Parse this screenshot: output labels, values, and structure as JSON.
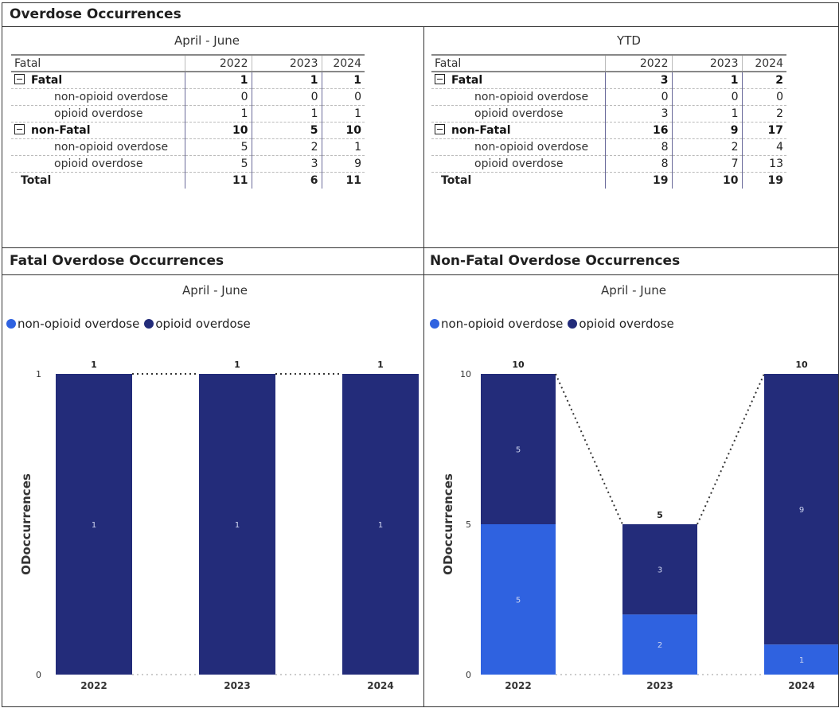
{
  "title": "Overdose Occurrences",
  "tables": [
    {
      "subtitle": "April - June",
      "header": {
        "label": "Fatal",
        "years": [
          "2022",
          "2023",
          "2024"
        ]
      },
      "rows": [
        {
          "label": "Fatal",
          "values": [
            "1",
            "1",
            "1"
          ]
        },
        {
          "label": "non-opioid overdose",
          "values": [
            "0",
            "0",
            "0"
          ]
        },
        {
          "label": "opioid overdose",
          "values": [
            "1",
            "1",
            "1"
          ]
        },
        {
          "label": "non-Fatal",
          "values": [
            "10",
            "5",
            "10"
          ]
        },
        {
          "label": "non-opioid overdose",
          "values": [
            "5",
            "2",
            "1"
          ]
        },
        {
          "label": "opioid overdose",
          "values": [
            "5",
            "3",
            "9"
          ]
        },
        {
          "label": "Total",
          "values": [
            "11",
            "6",
            "11"
          ]
        }
      ]
    },
    {
      "subtitle": "YTD",
      "header": {
        "label": "Fatal",
        "years": [
          "2022",
          "2023",
          "2024"
        ]
      },
      "rows": [
        {
          "label": "Fatal",
          "values": [
            "3",
            "1",
            "2"
          ]
        },
        {
          "label": "non-opioid overdose",
          "values": [
            "0",
            "0",
            "0"
          ]
        },
        {
          "label": "opioid overdose",
          "values": [
            "3",
            "1",
            "2"
          ]
        },
        {
          "label": "non-Fatal",
          "values": [
            "16",
            "9",
            "17"
          ]
        },
        {
          "label": "non-opioid overdose",
          "values": [
            "8",
            "2",
            "4"
          ]
        },
        {
          "label": "opioid overdose",
          "values": [
            "8",
            "7",
            "13"
          ]
        },
        {
          "label": "Total",
          "values": [
            "19",
            "10",
            "19"
          ]
        }
      ]
    }
  ],
  "charts": [
    {
      "title": "Fatal Overdose Occurrences",
      "subtitle": "April - June",
      "legend": [
        "non-opioid overdose",
        "opioid overdose"
      ]
    },
    {
      "title": "Non-Fatal Overdose Occurrences",
      "subtitle": "April - June",
      "legend": [
        "non-opioid overdose",
        "opioid overdose"
      ]
    }
  ],
  "colors": {
    "non_opioid": "#2f62e0",
    "opioid": "#232c7a"
  },
  "chart_data": [
    {
      "type": "bar",
      "stacked": true,
      "title": "Fatal Overdose Occurrences",
      "subtitle": "April - June",
      "categories": [
        "2022",
        "2023",
        "2024"
      ],
      "series": [
        {
          "name": "non-opioid overdose",
          "values": [
            0,
            0,
            0
          ]
        },
        {
          "name": "opioid overdose",
          "values": [
            1,
            1,
            1
          ]
        }
      ],
      "totals": [
        1,
        1,
        1
      ],
      "ylabel": "ODoccurrences",
      "ylim": [
        0,
        1
      ],
      "yticks": [
        0,
        1
      ],
      "legend": "top-left"
    },
    {
      "type": "bar",
      "stacked": true,
      "title": "Non-Fatal Overdose Occurrences",
      "subtitle": "April - June",
      "categories": [
        "2022",
        "2023",
        "2024"
      ],
      "series": [
        {
          "name": "non-opioid overdose",
          "values": [
            5,
            2,
            1
          ]
        },
        {
          "name": "opioid overdose",
          "values": [
            5,
            3,
            9
          ]
        }
      ],
      "totals": [
        10,
        5,
        10
      ],
      "ylabel": "ODoccurrences",
      "ylim": [
        0,
        10
      ],
      "yticks": [
        0,
        5,
        10
      ],
      "legend": "top-left"
    }
  ]
}
